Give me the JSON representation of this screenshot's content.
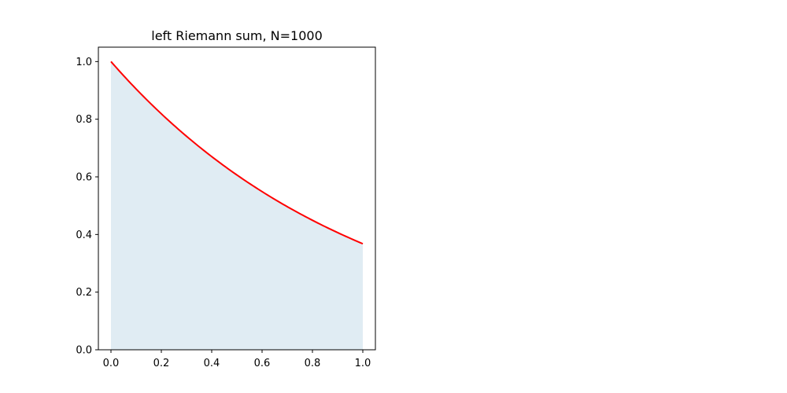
{
  "chart_data": {
    "type": "area",
    "title": "left Riemann sum, N=1000",
    "xlabel": "",
    "ylabel": "",
    "xlim": [
      -0.05,
      1.05
    ],
    "ylim": [
      0.0,
      1.05
    ],
    "grid": false,
    "legend": "none",
    "function": "exp(-x)",
    "x_domain": [
      0.0,
      1.0
    ],
    "N": 1000,
    "samples": 101,
    "xticks": [
      0.0,
      0.2,
      0.4,
      0.6,
      0.8,
      1.0
    ],
    "xtick_labels": [
      "0.0",
      "0.2",
      "0.4",
      "0.6",
      "0.8",
      "1.0"
    ],
    "yticks": [
      0.0,
      0.2,
      0.4,
      0.6,
      0.8,
      1.0
    ],
    "ytick_labels": [
      "0.0",
      "0.2",
      "0.4",
      "0.6",
      "0.8",
      "1.0"
    ],
    "series": [
      {
        "name": "left Riemann sum bars",
        "kind": "fill",
        "color": "#e0ecf3"
      },
      {
        "name": "exp(-x)",
        "kind": "line",
        "color": "#ff0000"
      }
    ]
  }
}
